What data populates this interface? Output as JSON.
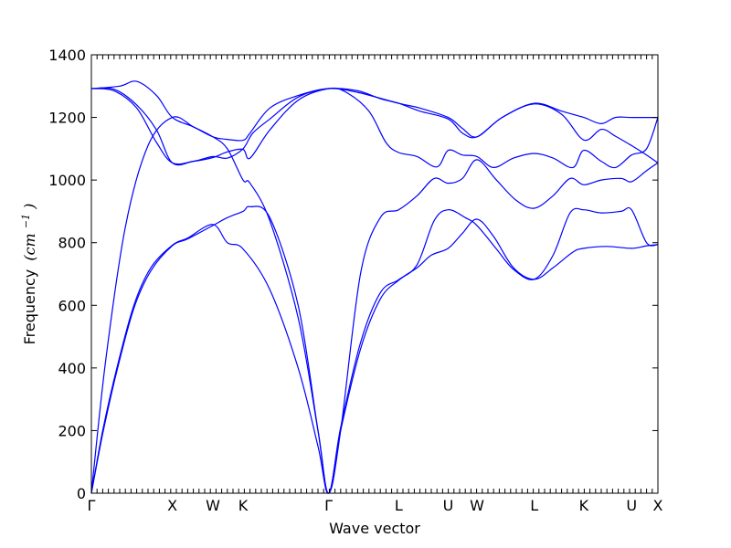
{
  "chart_data": {
    "type": "line",
    "title": "",
    "xlabel": "Wave vector",
    "ylabel": "Frequency",
    "ylabel_unit": "(cm",
    "ylabel_unit_exp": "−1",
    "ylabel_unit_close": ")",
    "ylim": [
      0,
      1400
    ],
    "yticks": [
      0,
      200,
      400,
      600,
      800,
      1000,
      1200,
      1400
    ],
    "xlim": [
      0,
      20
    ],
    "grid": false,
    "color": "#0000ff",
    "high_symmetry_points": [
      {
        "label": "Γ",
        "x": 0
      },
      {
        "label": "X",
        "x": 2.857
      },
      {
        "label": "W",
        "x": 4.29
      },
      {
        "label": "K",
        "x": 5.355
      },
      {
        "label": "Γ",
        "x": 8.375
      },
      {
        "label": "L",
        "x": 10.848
      },
      {
        "label": "U",
        "x": 12.597
      },
      {
        "label": "W",
        "x": 13.613
      },
      {
        "label": "L",
        "x": 15.636
      },
      {
        "label": "K",
        "x": 17.385
      },
      {
        "label": "U",
        "x": 19.071
      },
      {
        "label": "X",
        "x": 20
      }
    ],
    "series": [
      {
        "values": [
          [
            0,
            0
          ],
          [
            0.4,
            200
          ],
          [
            0.9,
            400
          ],
          [
            1.5,
            600
          ],
          [
            2.1,
            720
          ],
          [
            2.857,
            792
          ],
          [
            3.4,
            815
          ],
          [
            4.29,
            858
          ],
          [
            4.8,
            800
          ],
          [
            5.355,
            780
          ],
          [
            6.3,
            650
          ],
          [
            7.3,
            400
          ],
          [
            8.0,
            150
          ],
          [
            8.375,
            0
          ],
          [
            8.8,
            200
          ],
          [
            9.5,
            460
          ],
          [
            10.2,
            620
          ],
          [
            10.848,
            680
          ],
          [
            11.5,
            720
          ],
          [
            12.0,
            760
          ],
          [
            12.597,
            782
          ],
          [
            13.1,
            830
          ],
          [
            13.613,
            875
          ],
          [
            14.2,
            820
          ],
          [
            14.9,
            720
          ],
          [
            15.636,
            683
          ],
          [
            16.3,
            720
          ],
          [
            17.0,
            770
          ],
          [
            17.385,
            782
          ],
          [
            18.2,
            788
          ],
          [
            19.071,
            782
          ],
          [
            19.6,
            790
          ],
          [
            20,
            794
          ]
        ]
      },
      {
        "values": [
          [
            0,
            0
          ],
          [
            0.4,
            190
          ],
          [
            0.9,
            390
          ],
          [
            1.5,
            590
          ],
          [
            2.1,
            710
          ],
          [
            2.857,
            790
          ],
          [
            3.4,
            812
          ],
          [
            4.29,
            855
          ],
          [
            4.8,
            880
          ],
          [
            5.355,
            900
          ],
          [
            5.6,
            915
          ],
          [
            6.3,
            880
          ],
          [
            7.3,
            600
          ],
          [
            8.0,
            200
          ],
          [
            8.375,
            0
          ],
          [
            8.8,
            210
          ],
          [
            9.5,
            480
          ],
          [
            10.2,
            640
          ],
          [
            10.848,
            682
          ],
          [
            11.5,
            730
          ],
          [
            12.1,
            870
          ],
          [
            12.597,
            905
          ],
          [
            13.2,
            880
          ],
          [
            13.613,
            855
          ],
          [
            14.3,
            780
          ],
          [
            14.9,
            715
          ],
          [
            15.636,
            683
          ],
          [
            16.3,
            760
          ],
          [
            16.9,
            895
          ],
          [
            17.385,
            905
          ],
          [
            18.0,
            895
          ],
          [
            18.7,
            900
          ],
          [
            19.071,
            905
          ],
          [
            19.6,
            800
          ],
          [
            20,
            794
          ]
        ]
      },
      {
        "values": [
          [
            0,
            0
          ],
          [
            0.5,
            420
          ],
          [
            1.2,
            850
          ],
          [
            2.0,
            1110
          ],
          [
            2.857,
            1200
          ],
          [
            3.6,
            1170
          ],
          [
            4.29,
            1138
          ],
          [
            4.8,
            1130
          ],
          [
            5.355,
            1127
          ],
          [
            5.6,
            1150
          ],
          [
            6.3,
            1230
          ],
          [
            7.3,
            1270
          ],
          [
            8.375,
            1292
          ],
          [
            9.4,
            1280
          ],
          [
            10.848,
            1245
          ],
          [
            11.6,
            1230
          ],
          [
            12.597,
            1200
          ],
          [
            13.1,
            1165
          ],
          [
            13.613,
            1138
          ],
          [
            14.5,
            1200
          ],
          [
            15.636,
            1243
          ],
          [
            16.6,
            1210
          ],
          [
            17.385,
            1128
          ],
          [
            18.0,
            1162
          ],
          [
            18.5,
            1140
          ],
          [
            19.071,
            1110
          ],
          [
            19.6,
            1080
          ],
          [
            20,
            1055
          ]
        ]
      },
      {
        "values": [
          [
            0,
            1292
          ],
          [
            0.8,
            1290
          ],
          [
            1.6,
            1240
          ],
          [
            2.3,
            1160
          ],
          [
            2.857,
            1055
          ],
          [
            3.6,
            1060
          ],
          [
            4.29,
            1072
          ],
          [
            4.8,
            1090
          ],
          [
            5.355,
            1098
          ],
          [
            5.6,
            1070
          ],
          [
            6.3,
            1160
          ],
          [
            7.3,
            1255
          ],
          [
            8.375,
            1292
          ],
          [
            9.0,
            1280
          ],
          [
            9.8,
            1220
          ],
          [
            10.4,
            1120
          ],
          [
            10.848,
            1088
          ],
          [
            11.5,
            1075
          ],
          [
            12.2,
            1042
          ],
          [
            12.597,
            1095
          ],
          [
            13.1,
            1080
          ],
          [
            13.613,
            1075
          ],
          [
            14.2,
            1040
          ],
          [
            14.9,
            1070
          ],
          [
            15.636,
            1085
          ],
          [
            16.3,
            1070
          ],
          [
            17.0,
            1040
          ],
          [
            17.385,
            1095
          ],
          [
            18.0,
            1060
          ],
          [
            18.5,
            1040
          ],
          [
            19.071,
            1080
          ],
          [
            19.6,
            1100
          ],
          [
            20,
            1200
          ]
        ]
      },
      {
        "values": [
          [
            0,
            1292
          ],
          [
            1.0,
            1300
          ],
          [
            1.6,
            1315
          ],
          [
            2.3,
            1270
          ],
          [
            2.857,
            1200
          ],
          [
            3.6,
            1170
          ],
          [
            4.29,
            1138
          ],
          [
            4.8,
            1100
          ],
          [
            5.355,
            1000
          ],
          [
            5.6,
            990
          ],
          [
            6.3,
            870
          ],
          [
            7.3,
            560
          ],
          [
            8.0,
            200
          ],
          [
            8.375,
            0
          ],
          [
            8.8,
            200
          ],
          [
            9.5,
            700
          ],
          [
            10.2,
            880
          ],
          [
            10.848,
            905
          ],
          [
            11.5,
            950
          ],
          [
            12.1,
            1005
          ],
          [
            12.597,
            990
          ],
          [
            13.1,
            1005
          ],
          [
            13.613,
            1065
          ],
          [
            14.3,
            1000
          ],
          [
            15.0,
            935
          ],
          [
            15.636,
            910
          ],
          [
            16.3,
            950
          ],
          [
            16.9,
            1005
          ],
          [
            17.385,
            985
          ],
          [
            18.0,
            1000
          ],
          [
            18.7,
            1005
          ],
          [
            19.071,
            995
          ],
          [
            19.6,
            1030
          ],
          [
            20,
            1055
          ]
        ]
      },
      {
        "values": [
          [
            0,
            1292
          ],
          [
            0.8,
            1285
          ],
          [
            1.6,
            1230
          ],
          [
            2.3,
            1120
          ],
          [
            2.857,
            1055
          ],
          [
            3.6,
            1060
          ],
          [
            4.29,
            1075
          ],
          [
            4.8,
            1070
          ],
          [
            5.355,
            1100
          ],
          [
            5.7,
            1150
          ],
          [
            6.3,
            1195
          ],
          [
            7.3,
            1265
          ],
          [
            8.375,
            1292
          ],
          [
            9.4,
            1285
          ],
          [
            10.2,
            1260
          ],
          [
            10.848,
            1245
          ],
          [
            11.6,
            1220
          ],
          [
            12.597,
            1195
          ],
          [
            13.1,
            1150
          ],
          [
            13.613,
            1138
          ],
          [
            14.5,
            1200
          ],
          [
            15.636,
            1245
          ],
          [
            16.6,
            1220
          ],
          [
            17.385,
            1200
          ],
          [
            18.0,
            1180
          ],
          [
            18.5,
            1200
          ],
          [
            19.071,
            1200
          ],
          [
            20,
            1200
          ]
        ]
      }
    ]
  }
}
